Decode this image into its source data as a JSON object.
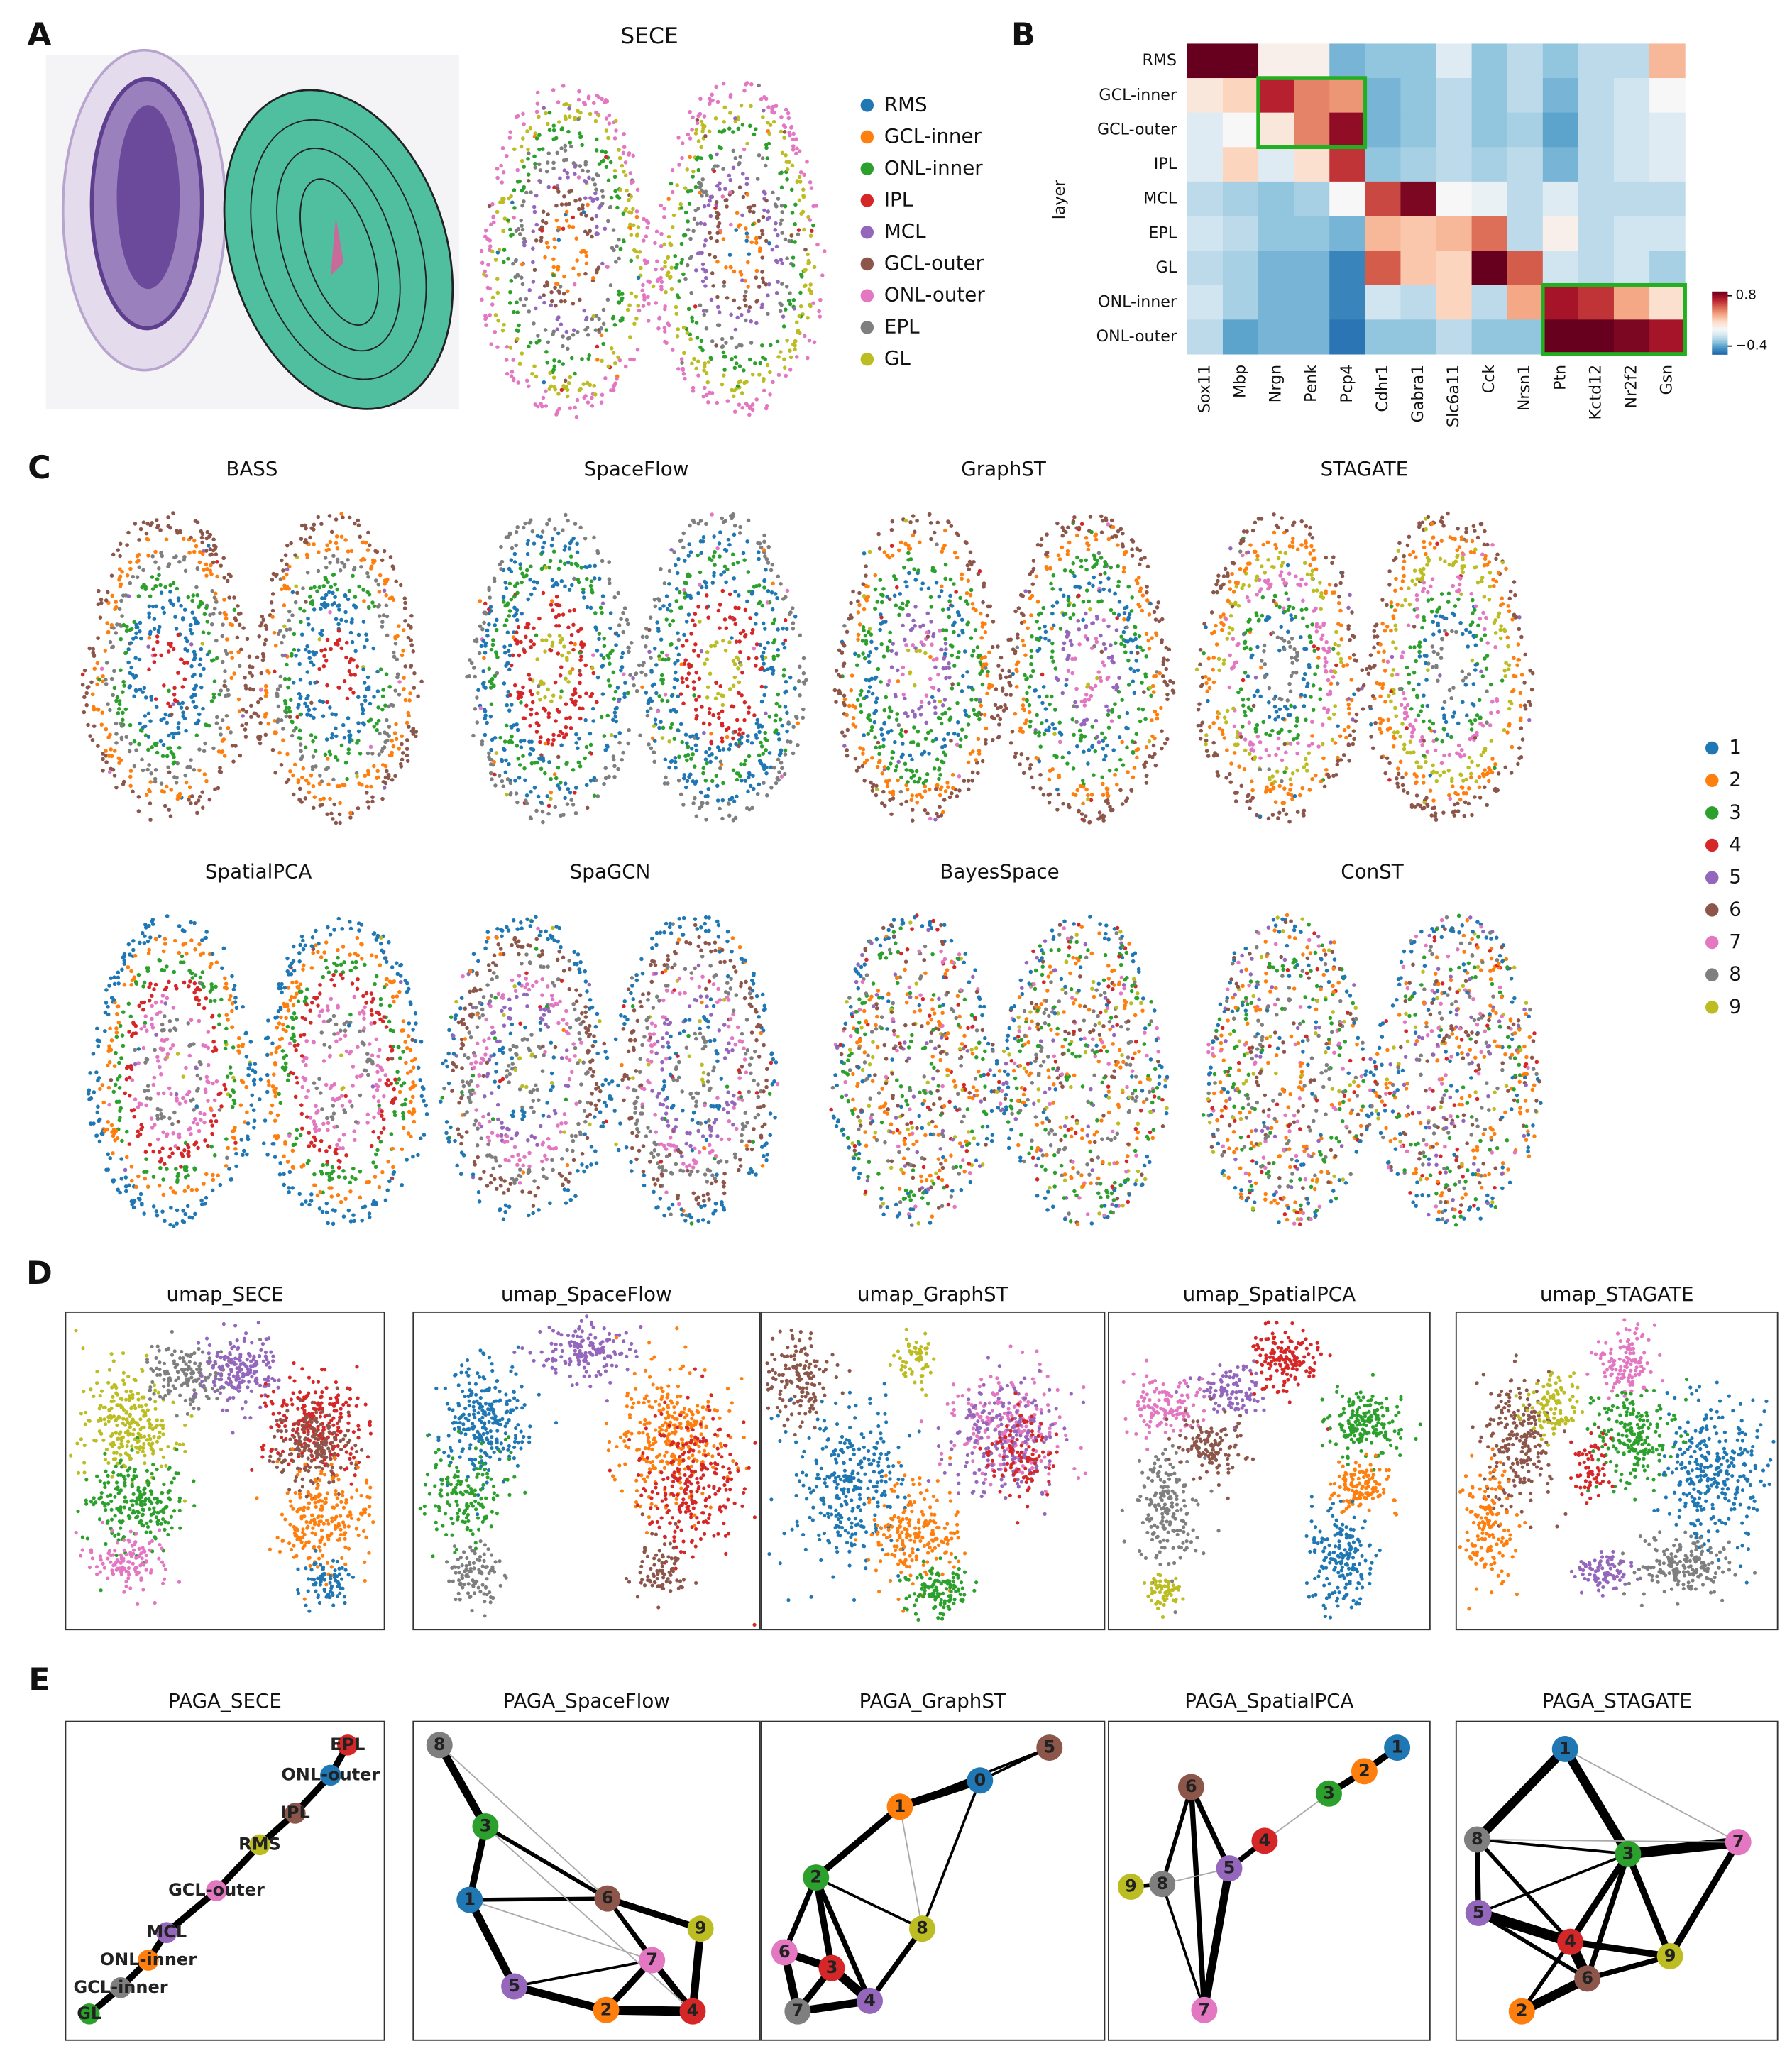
{
  "figure": {
    "panel_labels": [
      "A",
      "B",
      "C",
      "D",
      "E"
    ]
  },
  "panel_a": {
    "title": "SECE",
    "legend": [
      {
        "name": "RMS",
        "color": "#1f77b4"
      },
      {
        "name": "GCL-inner",
        "color": "#ff7f0e"
      },
      {
        "name": "ONL-inner",
        "color": "#2ca02c"
      },
      {
        "name": "IPL",
        "color": "#d62728"
      },
      {
        "name": "MCL",
        "color": "#9467bd"
      },
      {
        "name": "GCL-outer",
        "color": "#8c564b"
      },
      {
        "name": "ONL-outer",
        "color": "#e377c2"
      },
      {
        "name": "EPL",
        "color": "#7f7f7f"
      },
      {
        "name": "GL",
        "color": "#bcbd22"
      }
    ]
  },
  "chart_data": {
    "type": "heatmap",
    "ylabel": "layer",
    "rows": [
      "RMS",
      "GCL-inner",
      "GCL-outer",
      "IPL",
      "MCL",
      "EPL",
      "GL",
      "ONL-inner",
      "ONL-outer"
    ],
    "columns": [
      "Sox11",
      "Mbp",
      "Nrgn",
      "Penk",
      "Pcp4",
      "Cdhr1",
      "Gabra1",
      "Slc6a11",
      "Cck",
      "Nrsn1",
      "Ptn",
      "Kctd12",
      "Nr2f2",
      "Gsn"
    ],
    "values": [
      [
        0.9,
        0.9,
        0.05,
        0.05,
        -0.35,
        -0.3,
        -0.3,
        -0.1,
        -0.3,
        -0.2,
        -0.3,
        -0.2,
        -0.2,
        0.3
      ],
      [
        0.1,
        0.2,
        0.7,
        0.45,
        0.4,
        -0.35,
        -0.3,
        -0.2,
        -0.3,
        -0.2,
        -0.35,
        -0.2,
        -0.15,
        0
      ],
      [
        -0.1,
        0,
        0.1,
        0.45,
        0.8,
        -0.35,
        -0.3,
        -0.2,
        -0.3,
        -0.25,
        -0.4,
        -0.2,
        -0.15,
        -0.1
      ],
      [
        -0.1,
        0.2,
        -0.1,
        0.15,
        0.65,
        -0.3,
        -0.25,
        -0.2,
        -0.25,
        -0.2,
        -0.35,
        -0.2,
        -0.15,
        -0.1
      ],
      [
        -0.2,
        -0.25,
        -0.3,
        -0.25,
        0,
        0.6,
        0.85,
        0,
        -0.05,
        -0.2,
        -0.1,
        -0.2,
        -0.2,
        -0.2
      ],
      [
        -0.15,
        -0.2,
        -0.3,
        -0.3,
        -0.35,
        0.3,
        0.25,
        0.3,
        0.5,
        -0.2,
        0.05,
        -0.2,
        -0.15,
        -0.15
      ],
      [
        -0.2,
        -0.25,
        -0.35,
        -0.35,
        -0.5,
        0.55,
        0.25,
        0.2,
        0.9,
        0.55,
        -0.15,
        -0.2,
        -0.15,
        -0.25
      ],
      [
        -0.15,
        -0.25,
        -0.35,
        -0.35,
        -0.5,
        -0.15,
        -0.2,
        0.2,
        -0.2,
        0.35,
        0.75,
        0.65,
        0.35,
        0.15
      ],
      [
        -0.2,
        -0.4,
        -0.35,
        -0.35,
        -0.55,
        -0.3,
        -0.3,
        -0.2,
        -0.3,
        -0.3,
        0.9,
        0.9,
        0.85,
        0.75
      ]
    ],
    "clim": [
      -0.6,
      0.9
    ],
    "colorbar_ticks": [
      0.8,
      {
        "value": -0.4,
        "label": "−0.4"
      }
    ]
  },
  "panel_c": {
    "titles": [
      "BASS",
      "SpaceFlow",
      "GraphST",
      "STAGATE",
      "SpatialPCA",
      "SpaGCN",
      "BayesSpace",
      "ConST"
    ],
    "legend": [
      {
        "name": "1",
        "color": "#1f77b4"
      },
      {
        "name": "2",
        "color": "#ff7f0e"
      },
      {
        "name": "3",
        "color": "#2ca02c"
      },
      {
        "name": "4",
        "color": "#d62728"
      },
      {
        "name": "5",
        "color": "#9467bd"
      },
      {
        "name": "6",
        "color": "#8c564b"
      },
      {
        "name": "7",
        "color": "#e377c2"
      },
      {
        "name": "8",
        "color": "#7f7f7f"
      },
      {
        "name": "9",
        "color": "#bcbd22"
      }
    ]
  },
  "panel_d": {
    "titles": [
      "umap_SECE",
      "umap_SpaceFlow",
      "umap_GraphST",
      "umap_SpatialPCA",
      "umap_STAGATE"
    ]
  },
  "panel_e": {
    "graphs": [
      {
        "title": "PAGA_SECE",
        "nodes": [
          {
            "label": "EPL",
            "color": "#d62728"
          },
          {
            "label": "ONL-outer",
            "color": "#1f77b4"
          },
          {
            "label": "IPL",
            "color": "#8c564b"
          },
          {
            "label": "RMS",
            "color": "#bcbd22"
          },
          {
            "label": "GCL-outer",
            "color": "#e377c2"
          },
          {
            "label": "MCL",
            "color": "#9467bd"
          },
          {
            "label": "ONL-inner",
            "color": "#ff7f0e"
          },
          {
            "label": "GCL-inner",
            "color": "#7f7f7f"
          },
          {
            "label": "GL",
            "color": "#2ca02c"
          }
        ]
      },
      {
        "title": "PAGA_SpaceFlow",
        "nodes": [
          {
            "label": "8",
            "color": "#7f7f7f"
          },
          {
            "label": "3",
            "color": "#2ca02c"
          },
          {
            "label": "1",
            "color": "#1f77b4"
          },
          {
            "label": "6",
            "color": "#8c564b"
          },
          {
            "label": "9",
            "color": "#bcbd22"
          },
          {
            "label": "7",
            "color": "#e377c2"
          },
          {
            "label": "5",
            "color": "#9467bd"
          },
          {
            "label": "2",
            "color": "#ff7f0e"
          },
          {
            "label": "4",
            "color": "#d62728"
          }
        ]
      },
      {
        "title": "PAGA_GraphST",
        "nodes": [
          {
            "label": "5",
            "color": "#8c564b"
          },
          {
            "label": "0",
            "color": "#1f77b4"
          },
          {
            "label": "1",
            "color": "#ff7f0e"
          },
          {
            "label": "2",
            "color": "#2ca02c"
          },
          {
            "label": "8",
            "color": "#bcbd22"
          },
          {
            "label": "6",
            "color": "#e377c2"
          },
          {
            "label": "3",
            "color": "#d62728"
          },
          {
            "label": "4",
            "color": "#9467bd"
          },
          {
            "label": "7",
            "color": "#7f7f7f"
          }
        ]
      },
      {
        "title": "PAGA_SpatialPCA",
        "nodes": [
          {
            "label": "1",
            "color": "#1f77b4"
          },
          {
            "label": "2",
            "color": "#ff7f0e"
          },
          {
            "label": "3",
            "color": "#2ca02c"
          },
          {
            "label": "4",
            "color": "#d62728"
          },
          {
            "label": "6",
            "color": "#8c564b"
          },
          {
            "label": "5",
            "color": "#9467bd"
          },
          {
            "label": "8",
            "color": "#7f7f7f"
          },
          {
            "label": "9",
            "color": "#bcbd22"
          },
          {
            "label": "7",
            "color": "#e377c2"
          }
        ]
      },
      {
        "title": "PAGA_STAGATE",
        "nodes": [
          {
            "label": "1",
            "color": "#1f77b4"
          },
          {
            "label": "8",
            "color": "#7f7f7f"
          },
          {
            "label": "3",
            "color": "#2ca02c"
          },
          {
            "label": "7",
            "color": "#e377c2"
          },
          {
            "label": "5",
            "color": "#9467bd"
          },
          {
            "label": "4",
            "color": "#d62728"
          },
          {
            "label": "9",
            "color": "#bcbd22"
          },
          {
            "label": "6",
            "color": "#8c564b"
          },
          {
            "label": "2",
            "color": "#ff7f0e"
          }
        ]
      }
    ]
  }
}
